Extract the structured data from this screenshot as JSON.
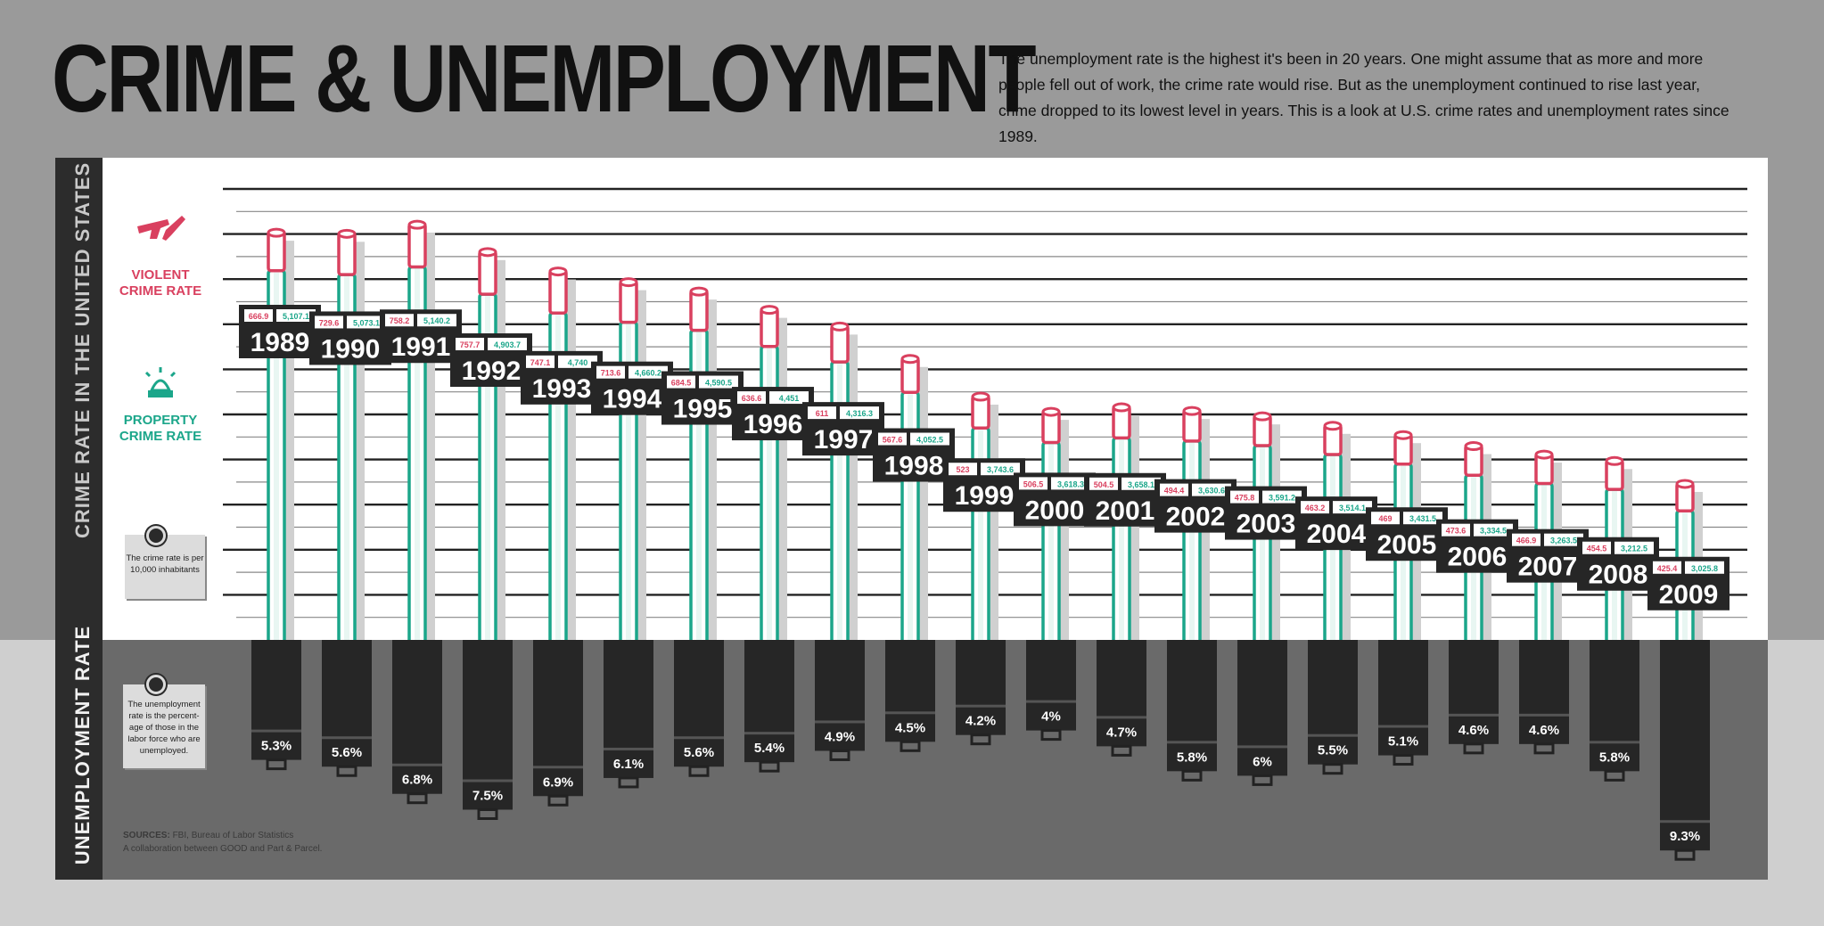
{
  "title": "CRIME & UNEMPLOYMENT",
  "intro": "The unemployment rate is the highest it's been in 20 years. One might assume that as more and more people fell out of work, the crime rate would rise. But as the unemployment continued to rise last year, crime dropped to its lowest level in years. This is a look at U.S. crime rates and unemployment rates since 1989.",
  "side_titles": {
    "crime": "CRIME RATE IN THE UNITED STATES",
    "unemployment": "UNEMPLOYMENT RATE"
  },
  "legend": {
    "violent": "VIOLENT CRIME RATE",
    "property": "PROPERTY CRIME RATE",
    "violent_icon": "handgun-knife-icon",
    "property_icon": "burglar-alarm-icon"
  },
  "notes": {
    "crime": "The crime rate is per 10,000 inhabitants",
    "unemployment": "The unemployment rate is the percent-age of those in the labor force who are unemployed."
  },
  "sources": {
    "label": "SOURCES:",
    "text": "FBI, Bureau of Labor Statistics",
    "credit": "A collaboration between GOOD and Part & Parcel."
  },
  "colors": {
    "violent": "#d9405f",
    "property": "#1ba68a",
    "dark": "#262626",
    "panel": "#ffffff",
    "unemp_panel": "#6a6a6a"
  },
  "chart_data": {
    "type": "bar",
    "categories": [
      "1989",
      "1990",
      "1991",
      "1992",
      "1993",
      "1994",
      "1995",
      "1996",
      "1997",
      "1998",
      "1999",
      "2000",
      "2001",
      "2002",
      "2003",
      "2004",
      "2005",
      "2006",
      "2007",
      "2008",
      "2009"
    ],
    "series": [
      {
        "name": "VIOLENT CRIME RATE",
        "values": [
          666.9,
          729.6,
          758.2,
          757.7,
          747.1,
          713.6,
          684.5,
          636.6,
          611,
          567.6,
          523,
          506.5,
          504.5,
          494.4,
          475.8,
          463.2,
          469,
          473.6,
          466.9,
          454.5,
          425.4
        ],
        "labels": [
          "666.9",
          "729.6",
          "758.2",
          "757.7",
          "747.1",
          "713.6",
          "684.5",
          "636.6",
          "611",
          "567.6",
          "523",
          "506.5",
          "504.5",
          "494.4",
          "475.8",
          "463.2",
          "469",
          "473.6",
          "466.9",
          "454.5",
          "425.4"
        ]
      },
      {
        "name": "PROPERTY CRIME RATE",
        "values": [
          5107.1,
          5073.1,
          5140.2,
          4903.7,
          4740,
          4660.2,
          4590.5,
          4451,
          4316.3,
          4052.5,
          3743.6,
          3618.3,
          3658.1,
          3630.6,
          3591.2,
          3514.1,
          3431.5,
          3334.5,
          3263.5,
          3212.5,
          3025.8
        ],
        "labels": [
          "5,107.1",
          "5,073.1",
          "5,140.2",
          "4,903.7",
          "4,740",
          "4,660.2",
          "4,590.5",
          "4,451",
          "4,316.3",
          "4,052.5",
          "3,743.6",
          "3,618.3",
          "3,658.1",
          "3,630.6",
          "3,591.2",
          "3,514.1",
          "3,431.5",
          "3,334.5",
          "3,263.5",
          "3,212.5",
          "3,025.8"
        ]
      },
      {
        "name": "UNEMPLOYMENT RATE",
        "values": [
          5.3,
          5.6,
          6.8,
          7.5,
          6.9,
          6.1,
          5.6,
          5.4,
          4.9,
          4.5,
          4.2,
          4,
          4.7,
          5.8,
          6,
          5.5,
          5.1,
          4.6,
          4.6,
          5.8,
          9.3
        ],
        "labels": [
          "5.3%",
          "5.6%",
          "6.8%",
          "7.5%",
          "6.9%",
          "6.1%",
          "5.6%",
          "5.4%",
          "4.9%",
          "4.5%",
          "4.2%",
          "4%",
          "4.7%",
          "5.8%",
          "6%",
          "5.5%",
          "5.1%",
          "4.6%",
          "4.6%",
          "5.8%",
          "9.3%"
        ]
      }
    ],
    "ylim": [
      0,
      6000
    ],
    "grid": true
  }
}
